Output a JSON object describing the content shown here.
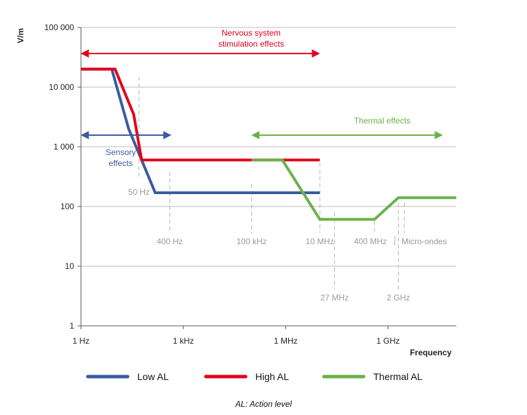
{
  "chart_data": {
    "type": "line",
    "xscale": "log",
    "yscale": "log",
    "ylabel": "V/m",
    "xlabel": "Frequency",
    "xlim": [
      1,
      100000000000.0
    ],
    "ylim": [
      1,
      100000
    ],
    "x_ticks": [
      {
        "value": 1,
        "label": "1 Hz"
      },
      {
        "value": 1000,
        "label": "1 kHz"
      },
      {
        "value": 1000000,
        "label": "1 MHz"
      },
      {
        "value": 1000000000,
        "label": "1 GHz"
      }
    ],
    "y_ticks": [
      {
        "value": 1,
        "label": "1"
      },
      {
        "value": 10,
        "label": "10"
      },
      {
        "value": 100,
        "label": "100"
      },
      {
        "value": 1000,
        "label": "1 000"
      },
      {
        "value": 10000,
        "label": "10 000"
      },
      {
        "value": 100000,
        "label": "100 000"
      }
    ],
    "grid": true,
    "series": [
      {
        "name": "Low AL",
        "color": "#3a5ba0",
        "points": [
          [
            1,
            20000
          ],
          [
            8,
            20000
          ],
          [
            25,
            2000
          ],
          [
            150,
            170
          ],
          [
            10000000,
            170
          ]
        ]
      },
      {
        "name": "High AL",
        "color": "#e3001b",
        "points": [
          [
            1,
            20000
          ],
          [
            10,
            20000
          ],
          [
            35,
            3500
          ],
          [
            60,
            600
          ],
          [
            10000000,
            600
          ]
        ]
      },
      {
        "name": "Thermal AL",
        "color": "#6ab24a",
        "points": [
          [
            100000,
            600
          ],
          [
            800000,
            600
          ],
          [
            10000000,
            61
          ],
          [
            400000000,
            61
          ],
          [
            2000000000,
            140
          ],
          [
            100000000000,
            140
          ]
        ]
      }
    ],
    "reference_lines": [
      {
        "label": "50 Hz",
        "value": 50,
        "label_side": "above"
      },
      {
        "label": "400 Hz",
        "value": 400,
        "label_side": "above"
      },
      {
        "label": "100 kHz",
        "value": 100000,
        "label_side": "above"
      },
      {
        "label": "10 MHz",
        "value": 10000000,
        "label_side": "above"
      },
      {
        "label": "27 MHz",
        "value": 27000000,
        "label_side": "below"
      },
      {
        "label": "400 MHz",
        "value": 400000000,
        "label_side": "above"
      },
      {
        "label": "2 GHz",
        "value": 2000000000,
        "label_side": "below"
      },
      {
        "label": "Micro-ondes",
        "value": 3000000000,
        "label_side": "above"
      }
    ],
    "annotations": [
      {
        "label_lines": [
          "Nervous system",
          "stimulation effects"
        ],
        "color": "#e3001b",
        "x_range": [
          1,
          10000000
        ],
        "y": 40000
      },
      {
        "label_lines": [
          "Sensory",
          "effects"
        ],
        "color": "#3a5ba0",
        "x_range": [
          1,
          400
        ],
        "y": 1500
      },
      {
        "label_lines": [
          "Thermal effects"
        ],
        "color": "#6ab24a",
        "x_range": [
          100000,
          100000000000
        ],
        "y": 1500
      }
    ],
    "legend": [
      {
        "label": "Low AL",
        "color": "#3a5ba0"
      },
      {
        "label": "High AL",
        "color": "#e3001b"
      },
      {
        "label": "Thermal AL",
        "color": "#6ab24a"
      }
    ],
    "legend_position": "bottom"
  },
  "footnote": "AL: Action level"
}
